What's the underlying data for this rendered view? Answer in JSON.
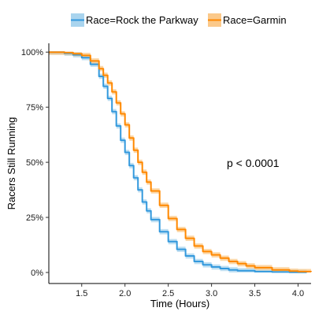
{
  "chart_data": {
    "type": "line",
    "step": true,
    "xlabel": "Time (Hours)",
    "ylabel": "Racers Still Running",
    "xlim": [
      1.12,
      4.15
    ],
    "ylim": [
      -0.05,
      1.04
    ],
    "xticks": [
      1.5,
      2.0,
      2.5,
      3.0,
      3.5,
      4.0
    ],
    "xtick_labels": [
      "1.5",
      "2.0",
      "2.5",
      "3.0",
      "3.5",
      "4.0"
    ],
    "yticks": [
      0,
      0.25,
      0.5,
      0.75,
      1.0
    ],
    "ytick_labels": [
      "0%",
      "25%",
      "50%",
      "75%",
      "100%"
    ],
    "grid": false,
    "legend_position": "top",
    "annotation": "p < 0.0001",
    "series": [
      {
        "name": "Race=Rock the Parkway",
        "color": "#3399dd",
        "band_color": "#a9d4ee",
        "x": [
          1.12,
          1.3,
          1.4,
          1.5,
          1.6,
          1.7,
          1.75,
          1.8,
          1.85,
          1.9,
          1.95,
          2.0,
          2.05,
          2.1,
          2.15,
          2.2,
          2.25,
          2.3,
          2.4,
          2.5,
          2.6,
          2.7,
          2.8,
          2.9,
          3.0,
          3.1,
          3.2,
          3.3,
          3.5,
          3.7,
          3.9,
          4.1
        ],
        "y": [
          1.0,
          0.995,
          0.988,
          0.975,
          0.945,
          0.89,
          0.845,
          0.79,
          0.73,
          0.665,
          0.6,
          0.545,
          0.485,
          0.43,
          0.375,
          0.32,
          0.28,
          0.24,
          0.185,
          0.14,
          0.105,
          0.075,
          0.05,
          0.035,
          0.025,
          0.018,
          0.012,
          0.008,
          0.004,
          0.002,
          0.001,
          0.0
        ]
      },
      {
        "name": "Race=Garmin",
        "color": "#ff8800",
        "band_color": "#fbc98a",
        "x": [
          1.12,
          1.3,
          1.4,
          1.5,
          1.6,
          1.7,
          1.75,
          1.8,
          1.85,
          1.9,
          1.95,
          2.0,
          2.05,
          2.1,
          2.15,
          2.2,
          2.25,
          2.3,
          2.4,
          2.5,
          2.6,
          2.7,
          2.8,
          2.9,
          3.0,
          3.1,
          3.2,
          3.3,
          3.4,
          3.5,
          3.7,
          3.9,
          4.0,
          4.15
        ],
        "y": [
          1.0,
          0.998,
          0.993,
          0.985,
          0.96,
          0.925,
          0.895,
          0.86,
          0.82,
          0.77,
          0.72,
          0.67,
          0.61,
          0.555,
          0.5,
          0.455,
          0.41,
          0.37,
          0.305,
          0.245,
          0.195,
          0.155,
          0.12,
          0.095,
          0.08,
          0.065,
          0.05,
          0.04,
          0.03,
          0.022,
          0.012,
          0.006,
          0.004,
          0.003
        ]
      }
    ]
  }
}
